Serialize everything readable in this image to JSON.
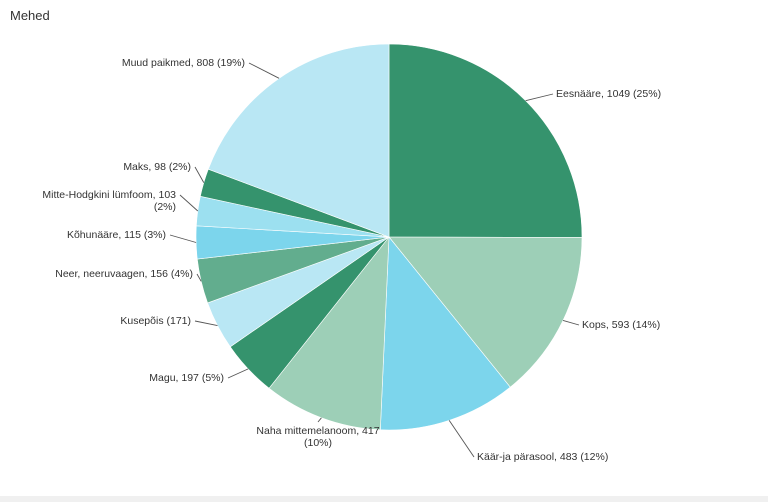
{
  "title": "Mehed",
  "colors": {
    "dark_green": "#35936d",
    "light_green": "#9dcfb7",
    "cyan": "#7cd5ec",
    "light_blue": "#b9e7f4",
    "mid_green": "#62ad8e"
  },
  "chart_data": {
    "type": "pie",
    "title": "Mehed",
    "slices": [
      {
        "label": "Eesnääre",
        "value": 1049,
        "percent": "25%",
        "display": [
          "Eesnääre, 1049 (25%)"
        ],
        "color": "#35936d"
      },
      {
        "label": "Kops",
        "value": 593,
        "percent": "14%",
        "display": [
          "Kops, 593 (14%)"
        ],
        "color": "#9dcfb7"
      },
      {
        "label": "Käär-ja pärasool",
        "value": 483,
        "percent": "12%",
        "display": [
          "Käär-ja pärasool, 483 (12%)"
        ],
        "color": "#7cd5ec"
      },
      {
        "label": "Naha mittemelanoom",
        "value": 417,
        "percent": "10%",
        "display": [
          "Naha mittemelanoom, 417",
          "(10%)"
        ],
        "color": "#9dcfb7"
      },
      {
        "label": "Magu",
        "value": 197,
        "percent": "5%",
        "display": [
          "Magu, 197 (5%)"
        ],
        "color": "#35936d"
      },
      {
        "label": "Kusepõis",
        "value": 171,
        "percent": "",
        "display": [
          "Kusepõis (171)"
        ],
        "color": "#b9e7f4"
      },
      {
        "label": "Neer, neeruvaagen",
        "value": 156,
        "percent": "4%",
        "display": [
          "Neer, neeruvaagen, 156 (4%)"
        ],
        "color": "#62ad8e"
      },
      {
        "label": "Kõhunääre",
        "value": 115,
        "percent": "3%",
        "display": [
          "Kõhunääre, 115 (3%)"
        ],
        "color": "#7cd5ec"
      },
      {
        "label": "Mitte-Hodgkini lümfoom",
        "value": 103,
        "percent": "2%",
        "display": [
          "Mitte-Hodgkini lümfoom, 103",
          "(2%)"
        ],
        "color": "#9ce0f0"
      },
      {
        "label": "Maks",
        "value": 98,
        "percent": "2%",
        "display": [
          "Maks, 98 (2%)"
        ],
        "color": "#35936d"
      },
      {
        "label": "Muud paikmed",
        "value": 808,
        "percent": "19%",
        "display": [
          "Muud paikmed, 808 (19%)"
        ],
        "color": "#b9e7f4"
      }
    ]
  }
}
